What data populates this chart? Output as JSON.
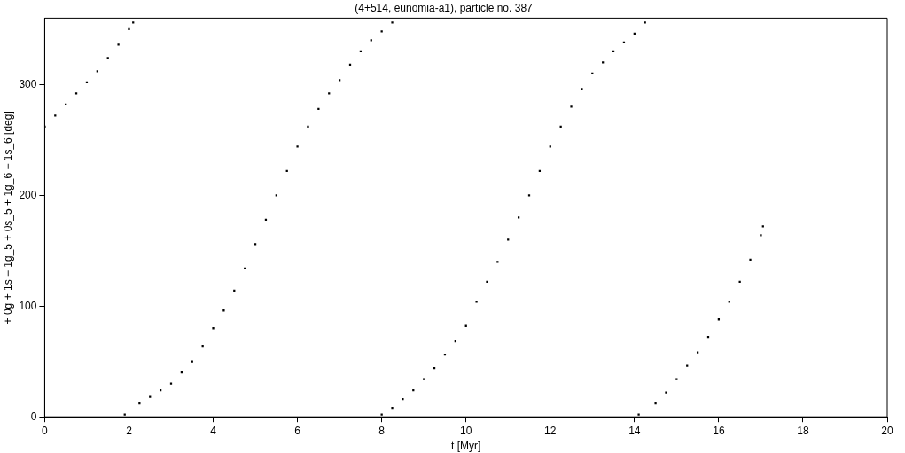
{
  "chart_data": {
    "type": "scatter",
    "title": "(4+514, eunomia-a1), particle no. 387",
    "xlabel": "t [Myr]",
    "ylabel": "+ 0g + 1s − 1g_5 + 0s_5 + 1g_6 − 1s_6 [deg]",
    "xlim": [
      0,
      20
    ],
    "xticks": [
      0,
      2,
      4,
      6,
      8,
      10,
      12,
      14,
      16,
      18,
      20
    ],
    "ylim": [
      0,
      360
    ],
    "yticks": [
      0,
      100,
      200,
      300
    ],
    "grid": false,
    "legend": false,
    "marker": "square",
    "series": [
      {
        "color": "#000000",
        "x": [
          0,
          0.25,
          0.5,
          0.75,
          1,
          1.25,
          1.5,
          1.75,
          2,
          2.1,
          1.9,
          2.25,
          2.5,
          2.75,
          3,
          3.25,
          3.5,
          3.75,
          4,
          4.25,
          4.5,
          4.75,
          5,
          5.25,
          5.5,
          5.75,
          6,
          6.25,
          6.5,
          6.75,
          7,
          7.25,
          7.5,
          7.75,
          8,
          8.25,
          8,
          8.25,
          8.5,
          8.75,
          9,
          9.25,
          9.5,
          9.75,
          10,
          10.25,
          10.5,
          10.75,
          11,
          11.25,
          11.5,
          11.75,
          12,
          12.25,
          12.5,
          12.75,
          13,
          13.25,
          13.5,
          13.75,
          14,
          14.25,
          14.1,
          14.5,
          14.75,
          15,
          15.25,
          15.5,
          15.75,
          16,
          16.25,
          16.5,
          16.75,
          17,
          17.05
        ],
        "values": [
          262,
          272,
          282,
          292,
          302,
          312,
          324,
          336,
          350,
          356,
          2,
          12,
          18,
          24,
          30,
          40,
          50,
          64,
          80,
          96,
          114,
          134,
          156,
          178,
          200,
          222,
          244,
          262,
          278,
          292,
          304,
          318,
          330,
          340,
          348,
          356,
          2,
          8,
          16,
          24,
          34,
          44,
          56,
          68,
          82,
          104,
          122,
          140,
          160,
          180,
          200,
          222,
          244,
          262,
          280,
          296,
          310,
          320,
          330,
          338,
          346,
          356,
          2,
          12,
          22,
          34,
          46,
          58,
          72,
          88,
          104,
          122,
          142,
          164,
          172
        ]
      }
    ]
  }
}
